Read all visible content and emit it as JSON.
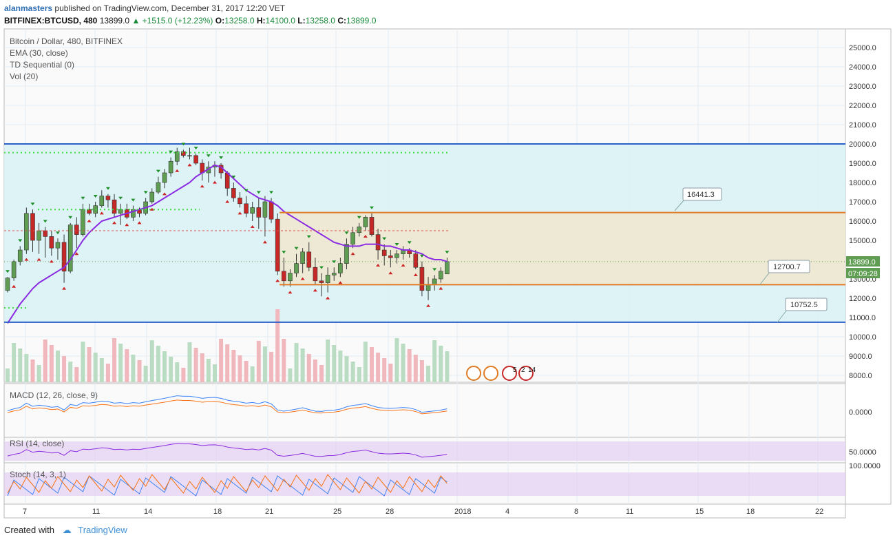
{
  "header": {
    "user": "alanmasters",
    "published": "published on TradingView.com, December 31, 2017 12:20 VET",
    "symbol": "BITFINEX:BTCUSD, 480",
    "last": "13899.0",
    "change": "+1515.0 (+12.23%)",
    "o_label": "O:",
    "o": "13258.0",
    "h_label": "H:",
    "h": "14100.0",
    "l_label": "L:",
    "l": "13258.0",
    "c_label": "C:",
    "c": "13899.0"
  },
  "legend": {
    "title": "Bitcoin / Dollar, 480, BITFINEX",
    "ema": "EMA (30, close)",
    "td": "TD Sequential (0)",
    "vol": "Vol (20)",
    "macd": "MACD (12, 26, close, 9)",
    "rsi": "RSI (14, close)",
    "stoch": "Stoch (14, 3, 1)"
  },
  "price_axis": [
    "25000.0",
    "24000.0",
    "23000.0",
    "22000.0",
    "21000.0",
    "20000.0",
    "19000.0",
    "18000.0",
    "17000.0",
    "16000.0",
    "15000.0",
    "14000.0",
    "13000.0",
    "12000.0",
    "11000.0",
    "10000.0",
    "9000.0",
    "8000.0"
  ],
  "macd_axis": "0.0000",
  "rsi_axis": "50.0000",
  "stoch_axis": "100.0000",
  "time_axis": [
    "7",
    "11",
    "14",
    "18",
    "21",
    "25",
    "28",
    "2018",
    "4",
    "8",
    "11",
    "15",
    "18",
    "22"
  ],
  "price_badge": {
    "price": "13899.0",
    "countdown": "07:09:28"
  },
  "levels": {
    "blue_top": "20000",
    "orange_top": "16441.3",
    "orange_bottom": "12700.7",
    "blue_bottom": "10752.5"
  },
  "events_label": {
    "a": "5",
    "b": "2",
    "c": "14"
  },
  "colors": {
    "up": "#5f9e52",
    "down": "#c62828",
    "ema": "#8a2be2",
    "zone_blue": "#d8f1f5",
    "zone_orange": "#f0e8d0",
    "blue_line": "#2a5fc7",
    "orange_line": "#e07b24"
  },
  "footer": {
    "created": "Created with",
    "brand": "TradingView"
  },
  "chart_data": {
    "type": "candlestick",
    "title": "Bitcoin / Dollar, 480, BITFINEX",
    "ylim": [
      7700,
      25800
    ],
    "candles": [
      [
        12400,
        13100,
        12300,
        13050
      ],
      [
        13050,
        14000,
        12900,
        13900
      ],
      [
        13900,
        14700,
        13700,
        14500
      ],
      [
        14500,
        16700,
        14300,
        16400
      ],
      [
        16400,
        16600,
        14400,
        15000
      ],
      [
        15000,
        15900,
        14300,
        15500
      ],
      [
        15500,
        15700,
        14100,
        15200
      ],
      [
        15200,
        15500,
        14200,
        14600
      ],
      [
        14600,
        15100,
        14000,
        14900
      ],
      [
        14900,
        15300,
        12800,
        13400
      ],
      [
        13400,
        15900,
        13300,
        15800
      ],
      [
        15800,
        16200,
        14600,
        15300
      ],
      [
        15300,
        16900,
        15200,
        16600
      ],
      [
        16600,
        16900,
        16300,
        16400
      ],
      [
        16400,
        17000,
        16200,
        16800
      ],
      [
        16800,
        17600,
        16700,
        17300
      ],
      [
        17300,
        17400,
        16700,
        17100
      ],
      [
        17100,
        17400,
        16200,
        16400
      ],
      [
        16400,
        16900,
        15800,
        16600
      ],
      [
        16600,
        16900,
        16100,
        16200
      ],
      [
        16200,
        16800,
        16000,
        16600
      ],
      [
        16600,
        16700,
        16200,
        16400
      ],
      [
        16400,
        17200,
        16300,
        17000
      ],
      [
        17000,
        17700,
        16900,
        17500
      ],
      [
        17500,
        18300,
        17400,
        18000
      ],
      [
        18000,
        18700,
        17700,
        18500
      ],
      [
        18500,
        19300,
        18300,
        19100
      ],
      [
        19100,
        19800,
        18900,
        19600
      ],
      [
        19600,
        19700,
        19300,
        19400
      ],
      [
        19400,
        19800,
        19200,
        19400
      ],
      [
        19400,
        19500,
        18900,
        19000
      ],
      [
        19000,
        19200,
        18100,
        18500
      ],
      [
        18500,
        19100,
        18000,
        18800
      ],
      [
        18800,
        19100,
        18300,
        18900
      ],
      [
        18900,
        19000,
        18200,
        18500
      ],
      [
        18500,
        18600,
        17300,
        17700
      ],
      [
        17700,
        18000,
        17000,
        17200
      ],
      [
        17200,
        17500,
        16700,
        16900
      ],
      [
        16900,
        17300,
        16200,
        16400
      ],
      [
        16400,
        17000,
        16000,
        16700
      ],
      [
        16700,
        17200,
        15600,
        16200
      ],
      [
        16200,
        17300,
        15200,
        17000
      ],
      [
        17000,
        17200,
        15900,
        16100
      ],
      [
        16100,
        16400,
        13200,
        13400
      ],
      [
        13400,
        14100,
        12600,
        12900
      ],
      [
        12900,
        13500,
        12600,
        13300
      ],
      [
        13300,
        14300,
        13100,
        13800
      ],
      [
        13800,
        14600,
        13300,
        14400
      ],
      [
        14400,
        14900,
        13400,
        13600
      ],
      [
        13600,
        14100,
        12700,
        12900
      ],
      [
        12900,
        13300,
        12100,
        12800
      ],
      [
        12800,
        13600,
        12300,
        13200
      ],
      [
        13200,
        13600,
        12900,
        13300
      ],
      [
        13300,
        14100,
        13100,
        13800
      ],
      [
        13800,
        15100,
        13500,
        14800
      ],
      [
        14800,
        15700,
        14600,
        15400
      ],
      [
        15400,
        15900,
        15200,
        15700
      ],
      [
        15700,
        16300,
        15500,
        16200
      ],
      [
        16200,
        16400,
        15200,
        15300
      ],
      [
        15300,
        15600,
        14000,
        14500
      ],
      [
        14500,
        14800,
        13700,
        14200
      ],
      [
        14200,
        14500,
        13600,
        14100
      ],
      [
        14100,
        14500,
        13800,
        14300
      ],
      [
        14300,
        14700,
        14000,
        14500
      ],
      [
        14500,
        14600,
        14100,
        14300
      ],
      [
        14300,
        14500,
        13500,
        13600
      ],
      [
        13600,
        13900,
        12100,
        12400
      ],
      [
        12400,
        13100,
        11900,
        12700
      ],
      [
        12700,
        13200,
        12400,
        13000
      ],
      [
        13000,
        13600,
        12800,
        13400
      ],
      [
        13258,
        14100,
        13258,
        13899
      ]
    ],
    "ema30": [
      10700,
      11200,
      11700,
      12100,
      12500,
      12800,
      13000,
      13200,
      13400,
      13600,
      14000,
      14500,
      15000,
      15400,
      15700,
      16000,
      16100,
      16200,
      16300,
      16400,
      16500,
      16600,
      16700,
      16800,
      17000,
      17200,
      17400,
      17600,
      17800,
      18000,
      18300,
      18500,
      18700,
      18900,
      18800,
      18500,
      18200,
      17900,
      17600,
      17400,
      17200,
      17100,
      17000,
      16800,
      16500,
      16300,
      16100,
      15900,
      15700,
      15500,
      15300,
      15100,
      14900,
      14800,
      14700,
      14700,
      14700,
      14800,
      14800,
      14800,
      14700,
      14700,
      14600,
      14500,
      14500,
      14400,
      14300,
      14100,
      14000,
      14000,
      13900
    ],
    "levels": [
      20000,
      16441.3,
      12700.7,
      10752.5
    ]
  }
}
